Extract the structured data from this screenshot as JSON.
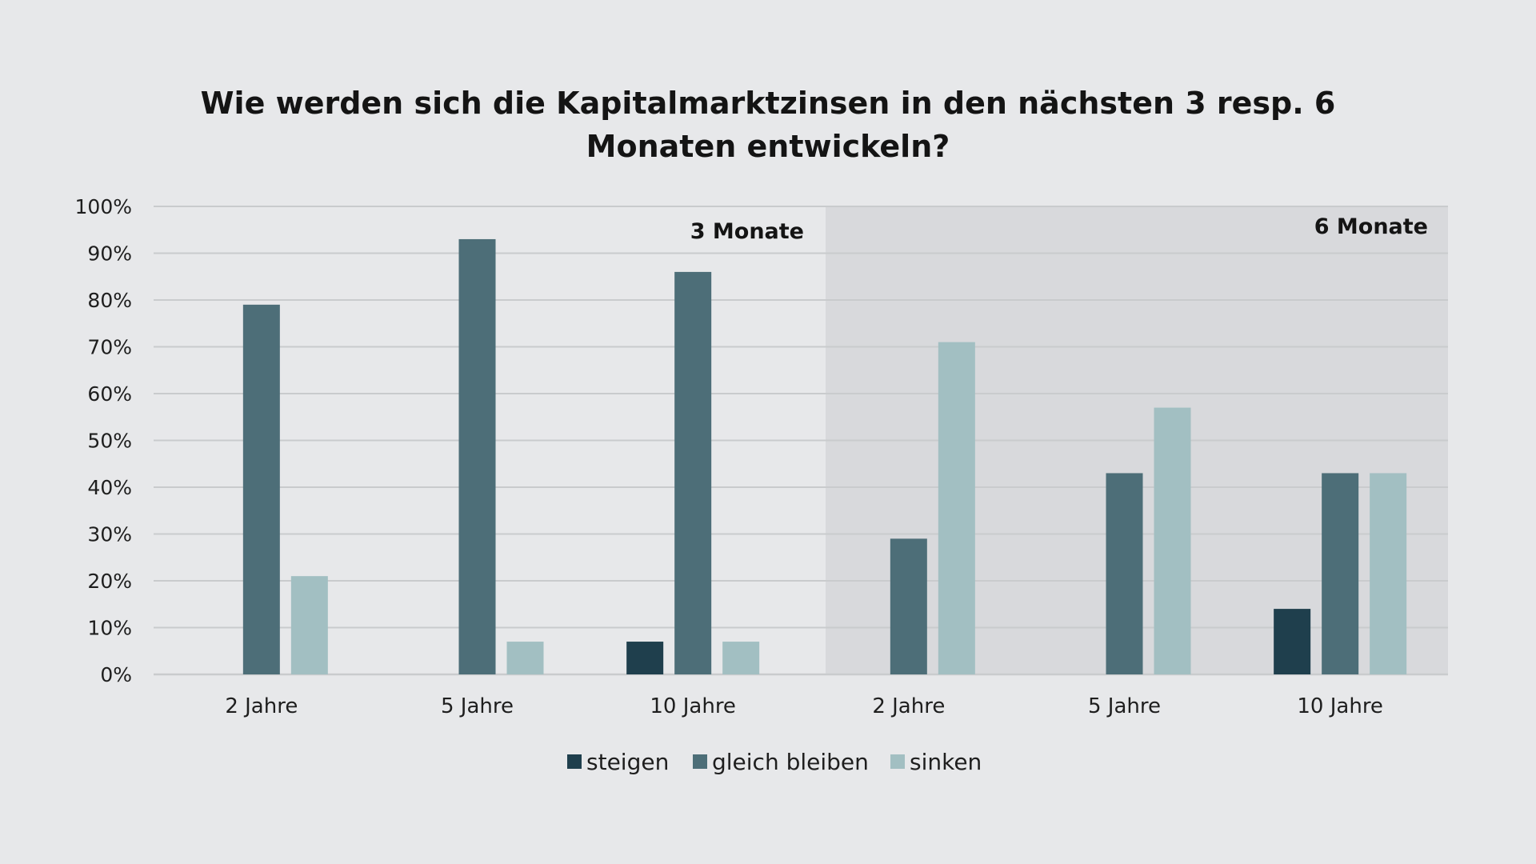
{
  "chart_data": {
    "type": "bar",
    "title": "Wie werden sich die Kapitalmarktzinsen in den nächsten 3 resp. 6",
    "title_line2": "Monaten entwickeln?",
    "xlabel": "",
    "ylabel": "",
    "ylim": [
      0,
      100
    ],
    "y_ticks": [
      "0%",
      "10%",
      "20%",
      "30%",
      "40%",
      "50%",
      "60%",
      "70%",
      "80%",
      "90%",
      "100%"
    ],
    "panels": [
      "3 Monate",
      "6 Monate"
    ],
    "categories": [
      "2 Jahre",
      "5 Jahre",
      "10 Jahre",
      "2 Jahre",
      "5 Jahre",
      "10 Jahre"
    ],
    "series": [
      {
        "name": "steigen",
        "color": "#1f3f4d",
        "values": [
          0,
          0,
          7,
          0,
          0,
          14
        ]
      },
      {
        "name": "gleich bleiben",
        "color": "#4d6e78",
        "values": [
          79,
          93,
          86,
          29,
          43,
          43
        ]
      },
      {
        "name": "sinken",
        "color": "#a2bfc2",
        "values": [
          21,
          7,
          7,
          71,
          57,
          43
        ]
      }
    ],
    "grid": true,
    "legend_position": "bottom",
    "colors": {
      "background": "#e7e8ea",
      "panel_left": "#e7e8ea",
      "panel_right": "#d8d9dc",
      "gridline": "#c9cbcd"
    }
  }
}
